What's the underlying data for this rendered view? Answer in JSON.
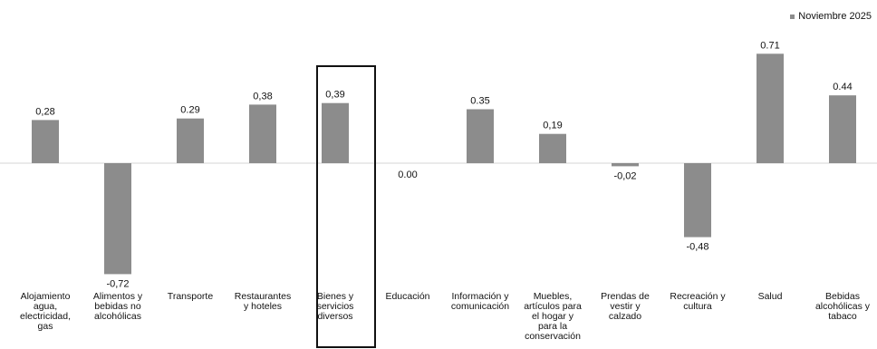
{
  "legend": {
    "label": "Noviembre 2025"
  },
  "colors": {
    "bar": "#8c8c8c",
    "zero_line": "#d6d6d6",
    "highlight": "#111111"
  },
  "highlight": {
    "category": "Bienes y servicios diversos"
  },
  "chart_data": {
    "type": "bar",
    "title": "",
    "xlabel": "",
    "ylabel": "",
    "ylim": [
      -0.8,
      0.8
    ],
    "grid": false,
    "legend_position": "top-right",
    "categories": [
      [
        "Alojamiento",
        "agua,",
        "electricidad,",
        "gas"
      ],
      [
        "Alimentos y",
        "bebidas no",
        "alcohólicas"
      ],
      [
        "Transporte"
      ],
      [
        "Restaurantes",
        "y hoteles"
      ],
      [
        "Bienes y",
        "servicios",
        "diversos"
      ],
      [
        "Educación"
      ],
      [
        "Información y",
        "comunicación"
      ],
      [
        "Muebles,",
        "artículos para",
        "el hogar y",
        "para la",
        "conservación"
      ],
      [
        "Prendas de",
        "vestir y",
        "calzado"
      ],
      [
        "Recreación y",
        "cultura"
      ],
      [
        "Salud"
      ],
      [
        "Bebidas",
        "alcohólicas y",
        "tabaco"
      ]
    ],
    "series": [
      {
        "name": "Noviembre 2025",
        "values": [
          0.28,
          -0.72,
          0.29,
          0.38,
          0.39,
          0.0,
          0.35,
          0.19,
          -0.02,
          -0.48,
          0.71,
          0.44
        ],
        "labels": [
          "0,28",
          "-0,72",
          "0.29",
          "0,38",
          "0,39",
          "0.00",
          "0.35",
          "0,19",
          "-0,02",
          "-0,48",
          "0.71",
          "0.44"
        ]
      }
    ]
  }
}
